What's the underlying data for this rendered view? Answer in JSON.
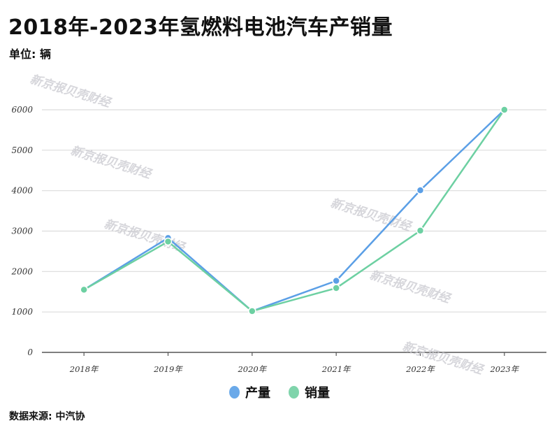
{
  "header": {
    "title": "2018年-2023年氢燃料电池汽车产销量",
    "unit": "单位: 辆"
  },
  "footer": {
    "source": "数据来源: 中汽协"
  },
  "watermark": "新京报贝壳财经",
  "legend": [
    {
      "label": "产量",
      "color": "#6aa9e9"
    },
    {
      "label": "销量",
      "color": "#7fd4ab"
    }
  ],
  "chart_data": {
    "type": "line",
    "title": "2018年-2023年氢燃料电池汽车产销量",
    "subtitle": "单位: 辆",
    "xlabel": "",
    "ylabel": "辆",
    "categories": [
      "2018年",
      "2019年",
      "2020年",
      "2021年",
      "2022年",
      "2023年"
    ],
    "series": [
      {
        "name": "产量",
        "color": "#5b9fe6",
        "values": [
          1550,
          2830,
          1020,
          1770,
          4010,
          6000
        ]
      },
      {
        "name": "销量",
        "color": "#6dd0a2",
        "values": [
          1550,
          2740,
          1020,
          1590,
          3010,
          6000
        ]
      }
    ],
    "yticks": [
      0,
      1000,
      2000,
      3000,
      4000,
      5000,
      6000
    ],
    "ylim": [
      0,
      6000
    ],
    "grid": true,
    "legend_position": "bottom",
    "source": "数据来源: 中汽协"
  }
}
